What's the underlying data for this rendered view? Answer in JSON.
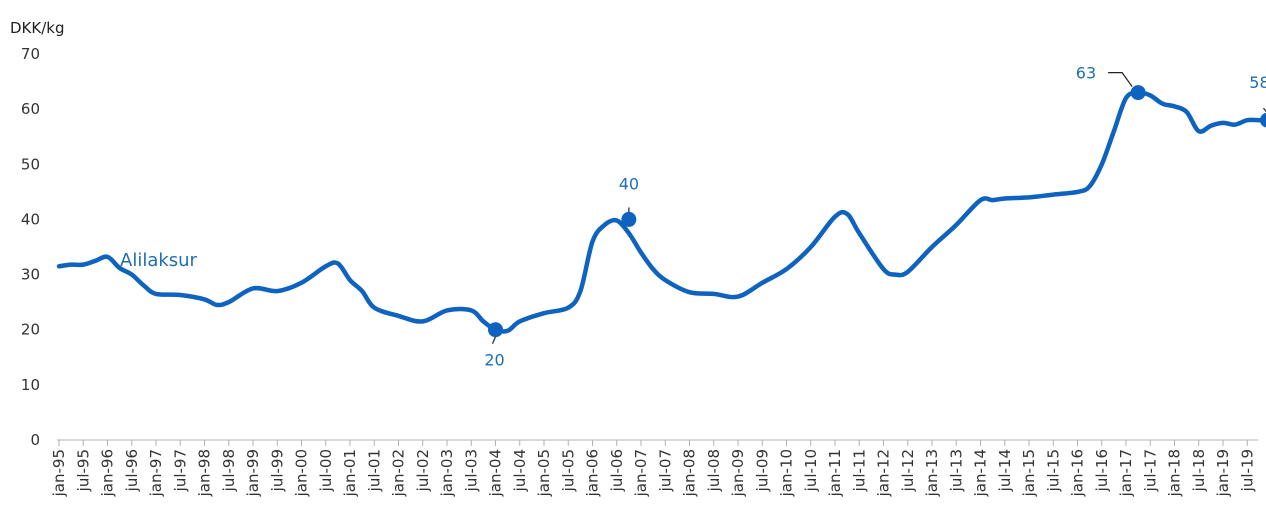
{
  "chart_data": {
    "type": "line",
    "ylabel": "DKK/kg",
    "ylim": [
      0,
      70
    ],
    "yticks": [
      0,
      10,
      20,
      30,
      40,
      50,
      60,
      70
    ],
    "xticks": [
      "jan-95",
      "jul-95",
      "jan-96",
      "jul-96",
      "jan-97",
      "jul-97",
      "jan-98",
      "jul-98",
      "jan-99",
      "jul-99",
      "jan-00",
      "jul-00",
      "jan-01",
      "jul-01",
      "jan-02",
      "jul-02",
      "jan-03",
      "jul-03",
      "jan-04",
      "jul-04",
      "jan-05",
      "jul-05",
      "jan-06",
      "jul-06",
      "jan-07",
      "jul-07",
      "jan-08",
      "jul-08",
      "jan-09",
      "jul-09",
      "jan-10",
      "jul-10",
      "jan-11",
      "jul-11",
      "jan-12",
      "jul-12",
      "jan-13",
      "jul-13",
      "jan-14",
      "jul-14",
      "jan-15",
      "jul-15",
      "jan-16",
      "jul-16",
      "jan-17",
      "jul-17",
      "jan-18",
      "jul-18",
      "jan-19",
      "jul-19"
    ],
    "grid": false,
    "colors": {
      "series": "#0e62c0",
      "label": "#1f6db5",
      "axis": "#b0b0b0",
      "leader": "#222222"
    },
    "series": [
      {
        "name": "Alilaksur",
        "x": [
          "jan-95",
          "apr-95",
          "jul-95",
          "oct-95",
          "jan-96",
          "apr-96",
          "jul-96",
          "oct-96",
          "jan-97",
          "jul-97",
          "jan-98",
          "apr-98",
          "jul-98",
          "jan-99",
          "jul-99",
          "jan-00",
          "jul-00",
          "oct-00",
          "jan-01",
          "apr-01",
          "jul-01",
          "jan-02",
          "jul-02",
          "jan-03",
          "jul-03",
          "oct-03",
          "jan-04",
          "apr-04",
          "jul-04",
          "jan-05",
          "jul-05",
          "oct-05",
          "jan-06",
          "apr-06",
          "jul-06",
          "oct-06",
          "jan-07",
          "apr-07",
          "jul-07",
          "jan-08",
          "jul-08",
          "jan-09",
          "jul-09",
          "jan-10",
          "jul-10",
          "jan-11",
          "apr-11",
          "jul-11",
          "jan-12",
          "apr-12",
          "jul-12",
          "jan-13",
          "jul-13",
          "jan-14",
          "apr-14",
          "jul-14",
          "jan-15",
          "jul-15",
          "jan-16",
          "apr-16",
          "jul-16",
          "oct-16",
          "jan-17",
          "apr-17",
          "jul-17",
          "oct-17",
          "jan-18",
          "apr-18",
          "jul-18",
          "oct-18",
          "jan-19",
          "apr-19",
          "jul-19",
          "oct-19",
          "dec-19"
        ],
        "values": [
          31.5,
          31.8,
          31.8,
          32.5,
          33.2,
          31.2,
          30.0,
          28.0,
          26.5,
          26.3,
          25.5,
          24.5,
          25.0,
          27.5,
          27.0,
          28.5,
          31.5,
          32.0,
          29.0,
          27.0,
          24.0,
          22.5,
          21.5,
          23.5,
          23.5,
          21.5,
          20.0,
          19.8,
          21.5,
          23.0,
          24.0,
          27.0,
          36.0,
          39.0,
          39.8,
          37.5,
          34.0,
          31.0,
          29.0,
          26.8,
          26.5,
          26.0,
          28.5,
          31.0,
          35.0,
          40.5,
          41.0,
          37.5,
          31.0,
          30.0,
          30.5,
          35.0,
          39.0,
          43.5,
          43.5,
          43.8,
          44.0,
          44.5,
          45.0,
          46.0,
          50.0,
          56.0,
          62.0,
          63.0,
          62.5,
          61.0,
          60.5,
          59.5,
          56.0,
          57.0,
          57.5,
          57.2,
          58.0,
          58.0,
          58.0
        ]
      }
    ],
    "annotations": [
      {
        "label": "20",
        "x": "jan-04",
        "y": 20
      },
      {
        "label": "40",
        "x": "oct-06",
        "y": 40
      },
      {
        "label": "63",
        "x": "apr-17",
        "y": 63
      },
      {
        "label": "58",
        "x": "dec-19",
        "y": 58
      }
    ]
  }
}
